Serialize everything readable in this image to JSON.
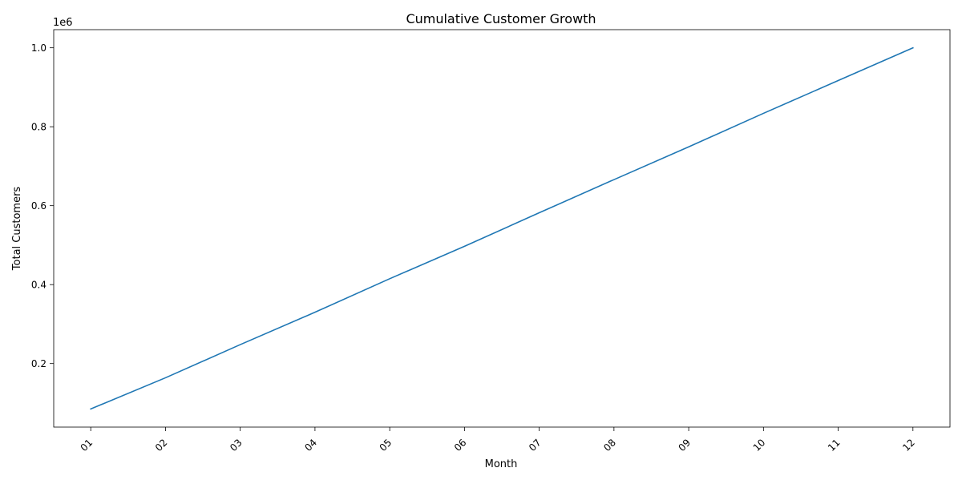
{
  "chart_data": {
    "type": "line",
    "title": "Cumulative Customer Growth",
    "xlabel": "Month",
    "ylabel": "Total Customers",
    "y_offset_text": "1e6",
    "y_scale": 1000000,
    "categories": [
      "01",
      "02",
      "03",
      "04",
      "05",
      "06",
      "07",
      "08",
      "09",
      "10",
      "11",
      "12"
    ],
    "series": [
      {
        "values": [
          85000,
          164000,
          248000,
          330000,
          415000,
          497000,
          582000,
          666000,
          749000,
          834000,
          917000,
          1000000
        ],
        "color": "#1f77b4"
      }
    ],
    "ylim": [
      39000,
      1046000
    ],
    "yticks": [
      200000,
      400000,
      600000,
      800000,
      1000000
    ],
    "ytick_labels": [
      "0.2",
      "0.4",
      "0.6",
      "0.8",
      "1.0"
    ],
    "grid": false,
    "x_tick_rotation": 45
  }
}
